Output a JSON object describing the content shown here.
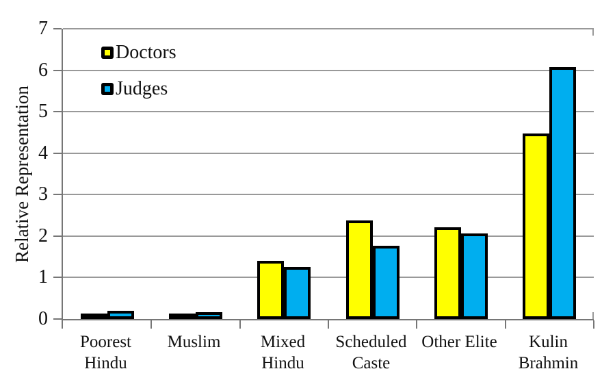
{
  "chart_data": {
    "type": "bar",
    "title": "",
    "xlabel": "",
    "ylabel": "Relative Representation",
    "ylim": [
      0,
      7
    ],
    "yticks": [
      0,
      1,
      2,
      3,
      4,
      5,
      6,
      7
    ],
    "grid": "horizontal",
    "legend_position": "top-left-inside",
    "categories": [
      "Poorest Hindu",
      "Muslim",
      "Mixed Hindu",
      "Scheduled Caste",
      "Other Elite",
      "Kulin Brahmin"
    ],
    "category_label_lines": [
      [
        "Poorest",
        "Hindu"
      ],
      [
        "Muslim"
      ],
      [
        "Mixed",
        "Hindu"
      ],
      [
        "Scheduled",
        "Caste"
      ],
      [
        "Other Elite"
      ],
      [
        "Kulin",
        "Brahmin"
      ]
    ],
    "series": [
      {
        "name": "Doctors",
        "color": "#FFFF00",
        "values": [
          0.1,
          0.13,
          1.4,
          2.38,
          2.22,
          4.47
        ]
      },
      {
        "name": "Judges",
        "color": "#00AEEF",
        "values": [
          0.2,
          0.16,
          1.26,
          1.77,
          2.07,
          6.08
        ]
      }
    ],
    "bar_outline_color": "#000000",
    "axis_color": "#767676",
    "gridline_color": "#999999"
  }
}
